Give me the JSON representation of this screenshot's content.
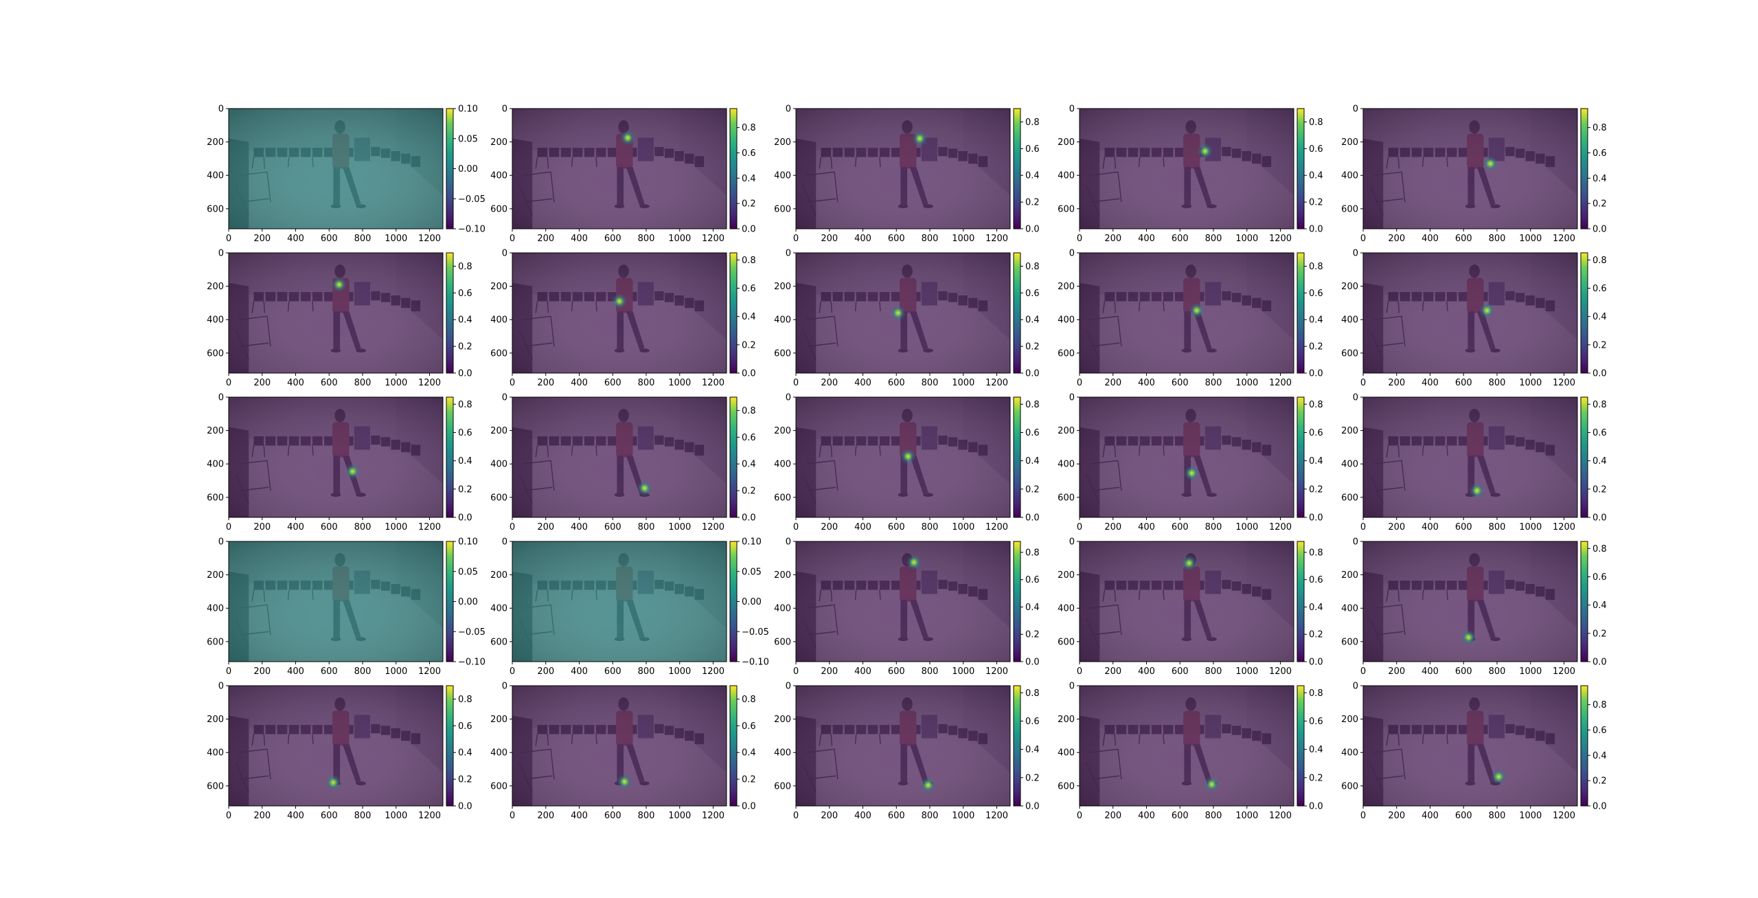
{
  "figure": {
    "rows": 5,
    "cols": 5
  },
  "image": {
    "x_range": [
      0,
      1280
    ],
    "y_range": [
      720,
      0
    ],
    "x_ticks": [
      0,
      200,
      400,
      600,
      800,
      1000,
      1200
    ],
    "y_ticks": [
      0,
      200,
      400,
      600
    ],
    "scene_description_icon": "person-in-room-photo"
  },
  "colors": {
    "viridis_low": "#440154",
    "viridis_mid": "#21918c",
    "viridis_high": "#fde725",
    "zero_overlay": "#2a7f7e",
    "heat_overlay": "#4b1d5c",
    "shirt": "#8b2030",
    "chairs": "#1a1020"
  },
  "chart_data": {
    "type": "heatmap",
    "description_series": "pose keypoint confidence heatmaps overlaid on image",
    "panels": [
      {
        "index": 0,
        "peak": null,
        "cbar_ticks": [
          "0.10",
          "0.05",
          "0.00",
          "−0.05",
          "−0.10"
        ],
        "cbar_range": [
          -0.1,
          0.1
        ]
      },
      {
        "index": 1,
        "peak": [
          690,
          175
        ],
        "cbar_ticks": [
          "0.8",
          "0.6",
          "0.4",
          "0.2",
          "0.0"
        ],
        "cbar_range": [
          0,
          0.95
        ]
      },
      {
        "index": 2,
        "peak": [
          740,
          180
        ],
        "cbar_ticks": [
          "0.8",
          "0.6",
          "0.4",
          "0.2",
          "0.0"
        ],
        "cbar_range": [
          0,
          0.9
        ]
      },
      {
        "index": 3,
        "peak": [
          750,
          255
        ],
        "cbar_ticks": [
          "0.8",
          "0.6",
          "0.4",
          "0.2",
          "0.0"
        ],
        "cbar_range": [
          0,
          0.9
        ]
      },
      {
        "index": 4,
        "peak": [
          760,
          330
        ],
        "cbar_ticks": [
          "0.8",
          "0.6",
          "0.4",
          "0.2",
          "0.0"
        ],
        "cbar_range": [
          0,
          0.95
        ]
      },
      {
        "index": 5,
        "peak": [
          660,
          190
        ],
        "cbar_ticks": [
          "0.8",
          "0.6",
          "0.4",
          "0.2",
          "0.0"
        ],
        "cbar_range": [
          0,
          0.9
        ]
      },
      {
        "index": 6,
        "peak": [
          640,
          290
        ],
        "cbar_ticks": [
          "0.8",
          "0.6",
          "0.4",
          "0.2",
          "0.0"
        ],
        "cbar_range": [
          0,
          0.85
        ]
      },
      {
        "index": 7,
        "peak": [
          610,
          360
        ],
        "cbar_ticks": [
          "0.8",
          "0.6",
          "0.4",
          "0.2",
          "0.0"
        ],
        "cbar_range": [
          0,
          0.9
        ]
      },
      {
        "index": 8,
        "peak": [
          700,
          345
        ],
        "cbar_ticks": [
          "0.8",
          "0.6",
          "0.4",
          "0.2",
          "0.0"
        ],
        "cbar_range": [
          0,
          0.9
        ]
      },
      {
        "index": 9,
        "peak": [
          740,
          345
        ],
        "cbar_ticks": [
          "0.8",
          "0.6",
          "0.4",
          "0.2",
          "0.0"
        ],
        "cbar_range": [
          0,
          0.85
        ]
      },
      {
        "index": 10,
        "peak": [
          740,
          445
        ],
        "cbar_ticks": [
          "0.8",
          "0.6",
          "0.4",
          "0.2",
          "0.0"
        ],
        "cbar_range": [
          0,
          0.85
        ]
      },
      {
        "index": 11,
        "peak": [
          790,
          545
        ],
        "cbar_ticks": [
          "0.8",
          "0.6",
          "0.4",
          "0.2",
          "0.0"
        ],
        "cbar_range": [
          0,
          0.9
        ]
      },
      {
        "index": 12,
        "peak": [
          670,
          355
        ],
        "cbar_ticks": [
          "0.8",
          "0.6",
          "0.4",
          "0.2",
          "0.0"
        ],
        "cbar_range": [
          0,
          0.85
        ]
      },
      {
        "index": 13,
        "peak": [
          670,
          455
        ],
        "cbar_ticks": [
          "0.8",
          "0.6",
          "0.4",
          "0.2",
          "0.0"
        ],
        "cbar_range": [
          0,
          0.85
        ]
      },
      {
        "index": 14,
        "peak": [
          680,
          560
        ],
        "cbar_ticks": [
          "0.8",
          "0.6",
          "0.4",
          "0.2",
          "0.0"
        ],
        "cbar_range": [
          0,
          0.85
        ]
      },
      {
        "index": 15,
        "peak": null,
        "cbar_ticks": [
          "0.10",
          "0.05",
          "0.00",
          "−0.05",
          "−0.10"
        ],
        "cbar_range": [
          -0.1,
          0.1
        ]
      },
      {
        "index": 16,
        "peak": null,
        "cbar_ticks": [
          "0.10",
          "0.05",
          "0.00",
          "−0.05",
          "−0.10"
        ],
        "cbar_range": [
          -0.1,
          0.1
        ]
      },
      {
        "index": 17,
        "peak": [
          705,
          125
        ],
        "cbar_ticks": [
          "0.8",
          "0.6",
          "0.4",
          "0.2",
          "0.0"
        ],
        "cbar_range": [
          0,
          0.88
        ]
      },
      {
        "index": 18,
        "peak": [
          655,
          130
        ],
        "cbar_ticks": [
          "0.8",
          "0.6",
          "0.4",
          "0.2",
          "0.0"
        ],
        "cbar_range": [
          0,
          0.88
        ]
      },
      {
        "index": 19,
        "peak": [
          630,
          575
        ],
        "cbar_ticks": [
          "0.8",
          "0.6",
          "0.4",
          "0.2",
          "0.0"
        ],
        "cbar_range": [
          0,
          0.85
        ]
      },
      {
        "index": 20,
        "peak": [
          625,
          580
        ],
        "cbar_ticks": [
          "0.8",
          "0.6",
          "0.4",
          "0.2",
          "0.0"
        ],
        "cbar_range": [
          0,
          0.9
        ]
      },
      {
        "index": 21,
        "peak": [
          670,
          575
        ],
        "cbar_ticks": [
          "0.8",
          "0.6",
          "0.4",
          "0.2",
          "0.0"
        ],
        "cbar_range": [
          0,
          0.9
        ]
      },
      {
        "index": 22,
        "peak": [
          790,
          595
        ],
        "cbar_ticks": [
          "0.8",
          "0.6",
          "0.4",
          "0.2",
          "0.0"
        ],
        "cbar_range": [
          0,
          0.85
        ]
      },
      {
        "index": 23,
        "peak": [
          790,
          590
        ],
        "cbar_ticks": [
          "0.8",
          "0.6",
          "0.4",
          "0.2",
          "0.0"
        ],
        "cbar_range": [
          0,
          0.85
        ]
      },
      {
        "index": 24,
        "peak": [
          810,
          545
        ],
        "cbar_ticks": [
          "0.8",
          "0.6",
          "0.4",
          "0.2",
          "0.0"
        ],
        "cbar_range": [
          0,
          0.95
        ]
      }
    ]
  }
}
